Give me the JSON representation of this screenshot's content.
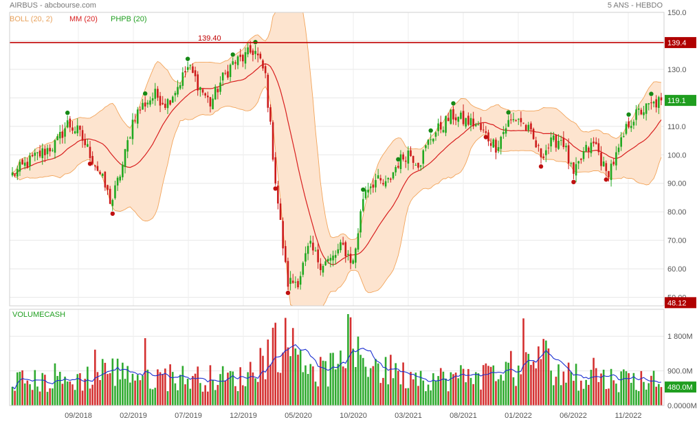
{
  "header": {
    "title": "AIRBUS - abcbourse.com",
    "period": "5 ANS - HEBDO"
  },
  "legend": {
    "boll": "BOLL (20, 2)",
    "mm": "MM (20)",
    "phpb": "PHPB (20)",
    "volume": "VOLUMECASH"
  },
  "colors": {
    "up": "#1fa81f",
    "down": "#cc1a1a",
    "boll_fill": "#fde4cf",
    "boll_line": "#f2a45a",
    "mm": "#d81e1e",
    "volume_avg": "#1a2ed0",
    "resistance": "#c00000",
    "last_price_bg": "#1f9e1f",
    "low_price_bg": "#b00000",
    "volume_badge_bg": "#1f9e1f"
  },
  "chart_data": [
    {
      "type": "candlestick",
      "title": "AIRBUS",
      "y_ticks": [
        "50.00",
        "60.00",
        "70.00",
        "80.00",
        "90.00",
        "100.0",
        "110.0",
        "120.0",
        "130.0",
        "140.0",
        "150.0"
      ],
      "ylim": [
        47,
        150
      ],
      "x_ticks": [
        "09/2018",
        "02/2019",
        "07/2019",
        "12/2019",
        "05/2020",
        "10/2020",
        "03/2021",
        "08/2021",
        "01/2022",
        "06/2022",
        "11/2022"
      ],
      "close_anchors": [
        [
          "2018-03",
          93
        ],
        [
          "2018-05",
          99
        ],
        [
          "2018-07",
          104
        ],
        [
          "2018-08",
          111
        ],
        [
          "2018-09",
          108
        ],
        [
          "2018-10",
          101
        ],
        [
          "2018-11",
          93
        ],
        [
          "2018-12",
          83
        ],
        [
          "2019-01",
          96
        ],
        [
          "2019-02",
          113
        ],
        [
          "2019-03",
          118
        ],
        [
          "2019-04",
          121
        ],
        [
          "2019-05",
          118
        ],
        [
          "2019-06",
          124
        ],
        [
          "2019-07",
          131
        ],
        [
          "2019-08",
          124
        ],
        [
          "2019-09",
          118
        ],
        [
          "2019-10",
          126
        ],
        [
          "2019-11",
          132
        ],
        [
          "2019-12",
          134
        ],
        [
          "2020-01",
          137
        ],
        [
          "2020-02",
          128
        ],
        [
          "2020-03",
          88
        ],
        [
          "2020-04",
          55
        ],
        [
          "2020-05",
          56
        ],
        [
          "2020-06",
          68
        ],
        [
          "2020-07",
          62
        ],
        [
          "2020-08",
          63
        ],
        [
          "2020-09",
          68
        ],
        [
          "2020-10",
          62
        ],
        [
          "2020-11",
          88
        ],
        [
          "2020-12",
          91
        ],
        [
          "2021-01",
          89
        ],
        [
          "2021-02",
          97
        ],
        [
          "2021-03",
          101
        ],
        [
          "2021-04",
          97
        ],
        [
          "2021-05",
          106
        ],
        [
          "2021-06",
          110
        ],
        [
          "2021-07",
          114
        ],
        [
          "2021-08",
          112
        ],
        [
          "2021-09",
          111
        ],
        [
          "2021-10",
          107
        ],
        [
          "2021-11",
          103
        ],
        [
          "2021-12",
          111
        ],
        [
          "2022-01",
          113
        ],
        [
          "2022-02",
          108
        ],
        [
          "2022-03",
          100
        ],
        [
          "2022-04",
          104
        ],
        [
          "2022-05",
          106
        ],
        [
          "2022-06",
          92
        ],
        [
          "2022-07",
          101
        ],
        [
          "2022-08",
          104
        ],
        [
          "2022-09",
          93
        ],
        [
          "2022-10",
          100
        ],
        [
          "2022-11",
          111
        ],
        [
          "2022-12",
          115
        ],
        [
          "2023-01",
          117
        ],
        [
          "2023-02",
          119.1
        ]
      ],
      "resistance": {
        "value": 139.4,
        "label": "139.40",
        "badge": "139.4"
      },
      "last_price": "119.1",
      "low_price": "48.12",
      "ppmhb_high_markers": [
        "2018-08",
        "2019-03",
        "2019-07",
        "2019-11",
        "2020-01",
        "2020-11",
        "2021-02",
        "2021-05",
        "2021-07",
        "2021-12",
        "2022-11",
        "2023-01"
      ],
      "ppmhb_low_markers": [
        "2018-10",
        "2018-12",
        "2020-03",
        "2020-04",
        "2021-10",
        "2022-03",
        "2022-06",
        "2022-09"
      ],
      "series": [
        {
          "name": "BOLL (20, 2)",
          "kind": "band"
        },
        {
          "name": "MM (20)",
          "kind": "line"
        },
        {
          "name": "PHPB (20)",
          "kind": "markers"
        }
      ]
    },
    {
      "type": "bar",
      "title": "VOLUMECASH",
      "y_ticks": [
        "0.0000M",
        "900.0M",
        "1 800M"
      ],
      "ylim": [
        0,
        2500
      ],
      "unit": "M",
      "volume_anchors": [
        [
          "2018-03",
          650
        ],
        [
          "2018-08",
          600
        ],
        [
          "2018-12",
          900
        ],
        [
          "2019-03",
          750
        ],
        [
          "2019-07",
          720
        ],
        [
          "2019-12",
          700
        ],
        [
          "2020-02",
          1300
        ],
        [
          "2020-03",
          1700
        ],
        [
          "2020-05",
          1400
        ],
        [
          "2020-07",
          850
        ],
        [
          "2020-11",
          1300
        ],
        [
          "2021-01",
          850
        ],
        [
          "2021-06",
          700
        ],
        [
          "2021-10",
          800
        ],
        [
          "2022-01",
          900
        ],
        [
          "2022-03",
          1350
        ],
        [
          "2022-05",
          800
        ],
        [
          "2022-09",
          700
        ],
        [
          "2023-02",
          650
        ]
      ],
      "last_volume": "480.0M",
      "series": [
        {
          "name": "VOLUMECASH",
          "kind": "bars"
        }
      ]
    }
  ]
}
